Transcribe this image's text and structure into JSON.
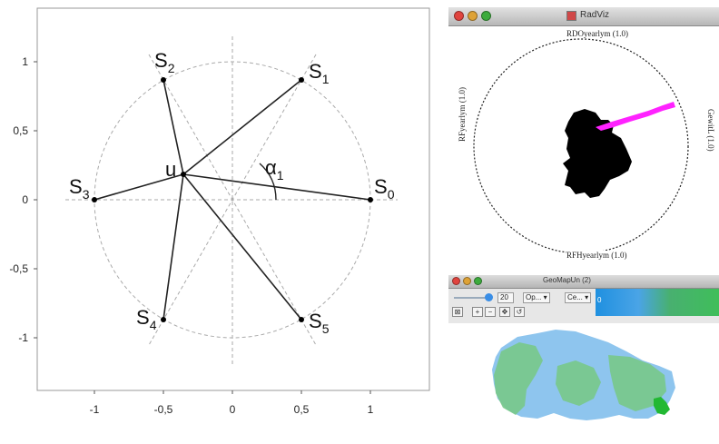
{
  "diagram": {
    "x_ticks": [
      "-1",
      "-0,5",
      "0",
      "0,5",
      "1"
    ],
    "y_ticks": [
      "1",
      "0,5",
      "0",
      "-0,5",
      "-1"
    ],
    "point_label": "u",
    "angle_label": "α",
    "angle_sub": "1",
    "anchors": [
      {
        "base": "S",
        "sub": "0"
      },
      {
        "base": "S",
        "sub": "1"
      },
      {
        "base": "S",
        "sub": "2"
      },
      {
        "base": "S",
        "sub": "3"
      },
      {
        "base": "S",
        "sub": "4"
      },
      {
        "base": "S",
        "sub": "5"
      }
    ]
  },
  "radviz": {
    "title": "RadViz",
    "anchor_top": "RDOyearlym (1.0)",
    "anchor_bottom": "RFHyearlym (1.0)",
    "anchor_left": "RFyearlym (1.0)",
    "anchor_right": "GewitL (1.0)",
    "colors": {
      "cluster": "#000000",
      "highlight": "#ff22ff"
    }
  },
  "geomap": {
    "title": "GeoMapUn (2)",
    "slider_value": "20",
    "combo1": "Op...",
    "combo2": "Ce...",
    "bar_value": "0",
    "colors": {
      "light": "#8ec5ee",
      "mid": "#78c888",
      "highlight": "#22b833"
    }
  }
}
